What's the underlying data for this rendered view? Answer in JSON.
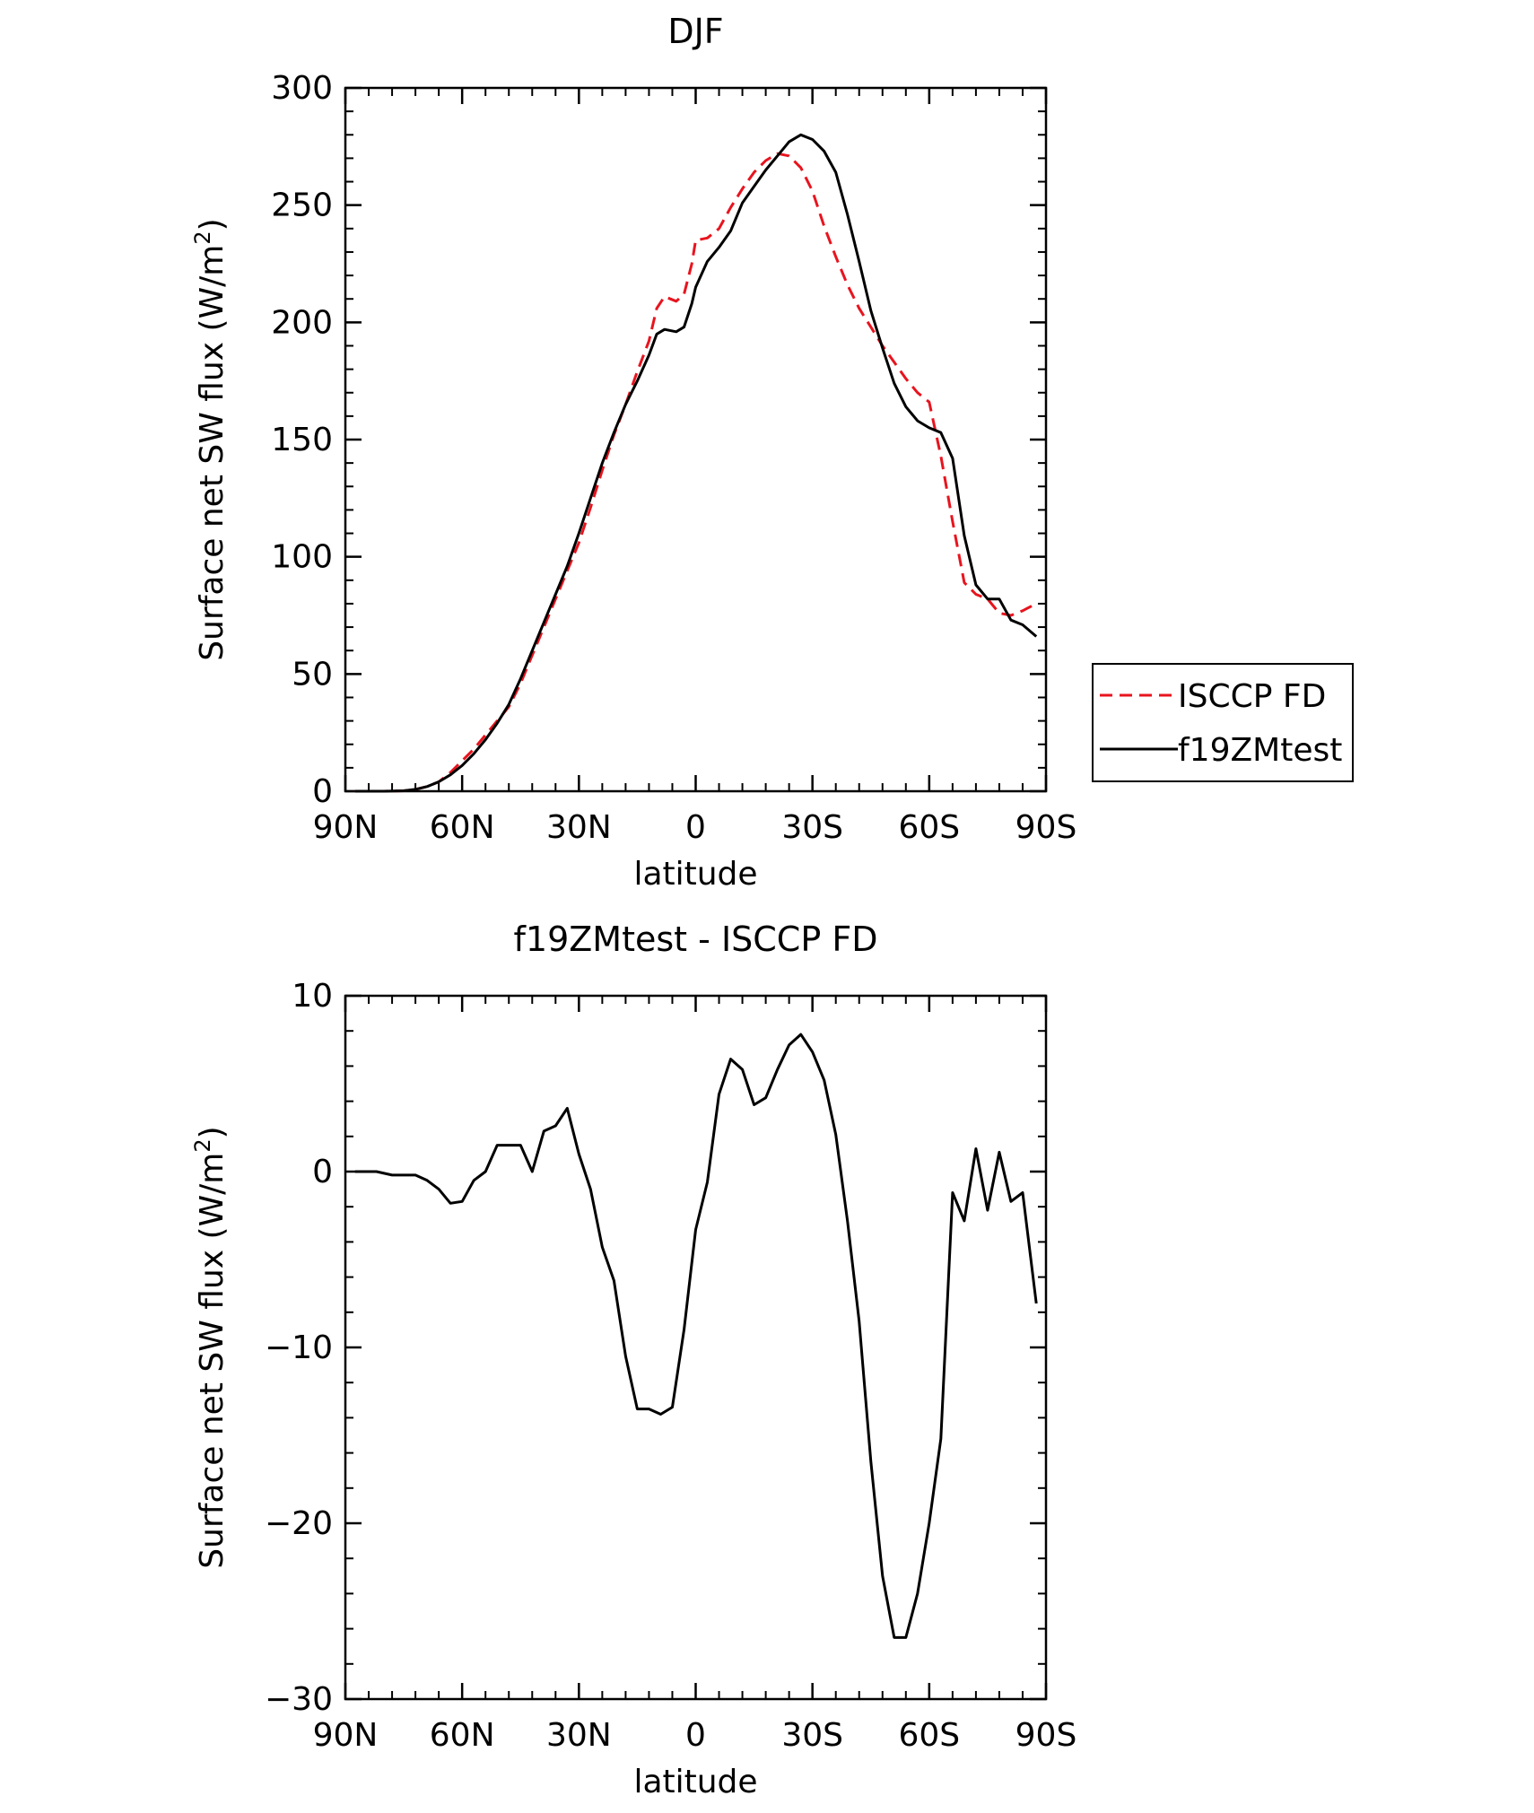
{
  "chart_data": [
    {
      "type": "line",
      "title": "DJF",
      "xlabel": "latitude",
      "ylabel": "Surface net SW flux (W/m²)",
      "ylabel_text": "Surface net SW flux (W/m",
      "ylabel_sup": "2",
      "ylabel_close": ")",
      "xlim": [
        -90,
        90
      ],
      "ylim": [
        0,
        300
      ],
      "xticks": [
        -90,
        -60,
        -30,
        0,
        30,
        60,
        90
      ],
      "xtick_labels": [
        "90N",
        "60N",
        "30N",
        "0",
        "30S",
        "60S",
        "90S"
      ],
      "yticks": [
        0,
        50,
        100,
        150,
        200,
        250,
        300
      ],
      "ytick_labels": [
        "0",
        "50",
        "100",
        "150",
        "200",
        "250",
        "300"
      ],
      "legend": {
        "placement": "outside-right",
        "entries": [
          "ISCCP FD",
          "f19ZMtest"
        ]
      },
      "series": [
        {
          "name": "ISCCP FD",
          "color": "#e8141e",
          "dash": "dashed",
          "x": [
            -87.5,
            -80,
            -75,
            -72,
            -69,
            -66,
            -63,
            -60,
            -57,
            -54,
            -51,
            -48,
            -45,
            -42,
            -39,
            -36,
            -33,
            -30,
            -27,
            -24,
            -21,
            -18,
            -15,
            -12,
            -10,
            -8,
            -5,
            -3,
            -1,
            0,
            3,
            6,
            9,
            12,
            15,
            18,
            21,
            24,
            27,
            30,
            33,
            36,
            39,
            42,
            45,
            48,
            51,
            54,
            57,
            60,
            63,
            66,
            69,
            72,
            75,
            78,
            81,
            84,
            87.5
          ],
          "y": [
            0,
            0,
            0.2,
            0.8,
            2,
            4,
            8,
            13,
            18,
            24,
            30,
            36,
            46,
            58,
            70,
            82,
            94,
            106,
            121,
            137,
            152,
            165,
            179,
            192,
            206,
            211,
            209,
            212,
            225,
            235,
            236,
            240,
            249,
            257,
            264,
            269,
            272,
            271,
            266,
            256,
            241,
            228,
            216,
            206,
            198,
            190,
            183,
            176,
            170,
            166,
            143,
            115,
            89,
            84,
            82,
            76,
            75,
            77,
            80
          ]
        },
        {
          "name": "f19ZMtest",
          "color": "#000000",
          "dash": "solid",
          "x": [
            -87.5,
            -80,
            -75,
            -72,
            -69,
            -66,
            -63,
            -60,
            -57,
            -54,
            -51,
            -48,
            -45,
            -42,
            -39,
            -36,
            -33,
            -30,
            -27,
            -24,
            -21,
            -18,
            -15,
            -12,
            -10,
            -8,
            -5,
            -3,
            -1,
            0,
            3,
            6,
            9,
            12,
            15,
            18,
            21,
            24,
            27,
            30,
            33,
            36,
            39,
            42,
            45,
            48,
            51,
            54,
            57,
            60,
            63,
            66,
            69,
            72,
            75,
            78,
            81,
            84,
            87.5
          ],
          "y": [
            0,
            0,
            0.2,
            0.8,
            2,
            4,
            7,
            11,
            16,
            22,
            29,
            37,
            48,
            60,
            72,
            84,
            96,
            110,
            125,
            140,
            153,
            165,
            175,
            186,
            195,
            197,
            196,
            198,
            208,
            215,
            226,
            232,
            239,
            251,
            258,
            265,
            271,
            277,
            280,
            278,
            273,
            264,
            246,
            226,
            205,
            189,
            174,
            164,
            158,
            155,
            153,
            142,
            109,
            88,
            82,
            82,
            73,
            71,
            66
          ]
        }
      ]
    },
    {
      "type": "line",
      "title": "f19ZMtest - ISCCP FD",
      "xlabel": "latitude",
      "ylabel": "Surface net SW flux (W/m²)",
      "ylabel_text": "Surface net SW flux (W/m",
      "ylabel_sup": "2",
      "ylabel_close": ")",
      "xlim": [
        -90,
        90
      ],
      "ylim": [
        -30,
        10
      ],
      "xticks": [
        -90,
        -60,
        -30,
        0,
        30,
        60,
        90
      ],
      "xtick_labels": [
        "90N",
        "60N",
        "30N",
        "0",
        "30S",
        "60S",
        "90S"
      ],
      "yticks": [
        -30,
        -20,
        -10,
        0,
        10
      ],
      "ytick_labels": [
        "−30",
        "−20",
        "−10",
        "0",
        "10"
      ],
      "series": [
        {
          "name": "f19ZMtest - ISCCP FD",
          "color": "#000000",
          "dash": "solid",
          "x": [
            -87.5,
            -82,
            -78,
            -75,
            -72,
            -69,
            -66,
            -63,
            -60,
            -57,
            -54,
            -51,
            -48,
            -45,
            -42,
            -39,
            -36,
            -33,
            -30,
            -27,
            -24,
            -21,
            -18,
            -15,
            -12,
            -9,
            -6,
            -3,
            0,
            3,
            6,
            9,
            12,
            15,
            18,
            21,
            24,
            27,
            30,
            33,
            36,
            39,
            42,
            45,
            48,
            51,
            54,
            57,
            60,
            63,
            66,
            69,
            72,
            75,
            78,
            81,
            84,
            87.5
          ],
          "y": [
            0,
            0,
            -0.2,
            -0.2,
            -0.2,
            -0.5,
            -1,
            -1.8,
            -1.7,
            -0.5,
            0,
            1.5,
            1.5,
            1.5,
            0,
            2.3,
            2.6,
            3.6,
            1,
            -1,
            -4.3,
            -6.2,
            -10.5,
            -13.5,
            -13.5,
            -13.8,
            -13.4,
            -9,
            -3.3,
            -0.6,
            4.4,
            6.4,
            5.8,
            3.8,
            4.2,
            5.8,
            7.2,
            7.8,
            6.8,
            5.2,
            2.1,
            -2.8,
            -8.5,
            -16.5,
            -23,
            -26.5,
            -26.5,
            -24,
            -20,
            -15.2,
            -1.2,
            -2.8,
            1.3,
            -2.2,
            1.1,
            -1.7,
            -1.2,
            -7.5
          ]
        }
      ]
    }
  ]
}
